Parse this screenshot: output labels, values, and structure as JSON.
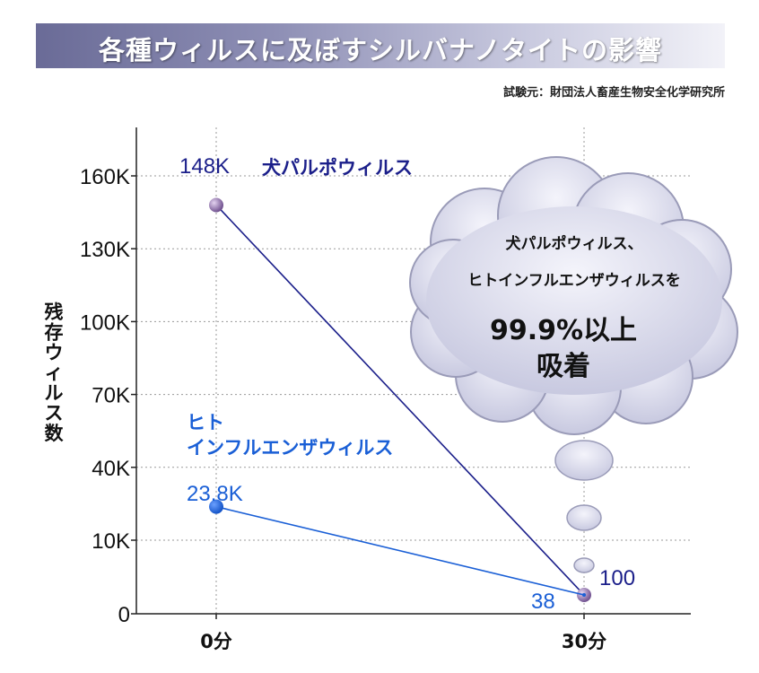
{
  "header": {
    "title": "各種ウィルスに及ぼすシルバナノタイトの影響",
    "source": "試験元：財団法人畜産生物安全化学研究所"
  },
  "chart_data": {
    "type": "line",
    "title": "各種ウィルスに及ぼすシルバナノタイトの影響",
    "ylabel": "残存ウィルス数",
    "xlabel": "",
    "categories": [
      "0分",
      "30分"
    ],
    "yticks": [
      "0",
      "10K",
      "40K",
      "70K",
      "100K",
      "130K",
      "160K"
    ],
    "ytick_values": [
      0,
      10000,
      40000,
      70000,
      100000,
      130000,
      160000
    ],
    "ylim": [
      0,
      180000
    ],
    "grid": true,
    "series": [
      {
        "name": "犬パルポウィルス",
        "values": [
          148000,
          100
        ],
        "labels": [
          "148K",
          "100"
        ],
        "color": "#1b1f8a",
        "marker_color": "#8a6aa8"
      },
      {
        "name_lines": [
          "ヒト",
          "インフルエンザウィルス"
        ],
        "values": [
          23800,
          38
        ],
        "labels": [
          "23.8K",
          "38"
        ],
        "color": "#1a5fd6",
        "marker_color": "#1a5fd6"
      }
    ],
    "annotation": {
      "lines": [
        "犬パルポウィルス、",
        "ヒトインフルエンザウィルスを"
      ],
      "highlight_lines": [
        "99.9%以上",
        "吸着"
      ]
    }
  }
}
